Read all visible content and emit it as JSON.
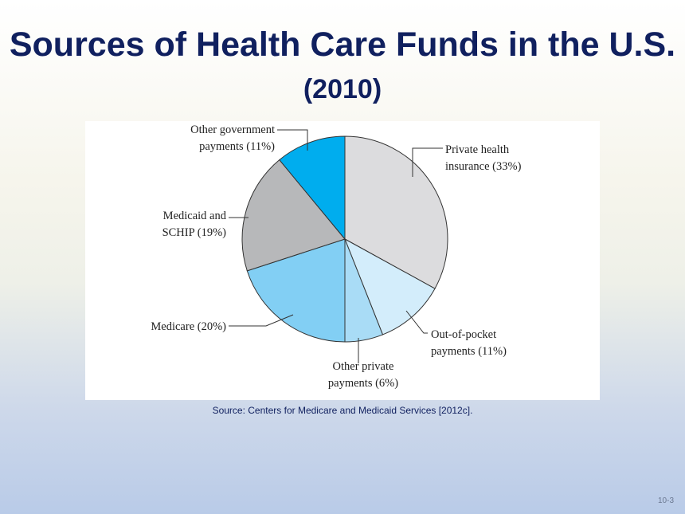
{
  "slide": {
    "title_main": "Sources of Health Care Funds in the U.S.",
    "title_year": "(2010)",
    "source": "Source:  Centers for Medicare and Medicaid Services [2012c].",
    "page_number": "10-3"
  },
  "chart_data": {
    "type": "pie",
    "title": "Sources of Health Care Funds in the U.S. (2010)",
    "unit": "%",
    "start_angle_deg": 0,
    "direction": "clockwise",
    "slices": [
      {
        "label": "Private health insurance (33%)",
        "value": 33,
        "color": "#dcdcde",
        "label_lines": [
          "Private health",
          "insurance (33%)"
        ]
      },
      {
        "label": "Out-of-pocket payments (11%)",
        "value": 11,
        "color": "#d3edfb",
        "label_lines": [
          "Out-of-pocket",
          "payments (11%)"
        ]
      },
      {
        "label": "Other private payments (6%)",
        "value": 6,
        "color": "#a9dcf6",
        "label_lines": [
          "Other private",
          "payments (6%)"
        ]
      },
      {
        "label": "Medicare (20%)",
        "value": 20,
        "color": "#82cff4",
        "label_lines": [
          "Medicare (20%)"
        ]
      },
      {
        "label": "Medicaid and SCHIP (19%)",
        "value": 19,
        "color": "#b7b8ba",
        "label_lines": [
          "Medicaid and",
          "SCHIP (19%)"
        ]
      },
      {
        "label": "Other government payments (11%)",
        "value": 11,
        "color": "#00adee",
        "label_lines": [
          "Other government",
          "payments (11%)"
        ]
      }
    ]
  }
}
